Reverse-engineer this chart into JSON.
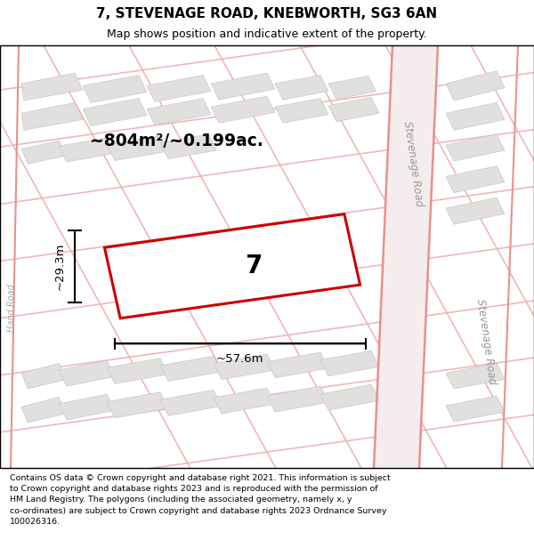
{
  "title_line1": "7, STEVENAGE ROAD, KNEBWORTH, SG3 6AN",
  "title_line2": "Map shows position and indicative extent of the property.",
  "footer_text": "Contains OS data © Crown copyright and database right 2021. This information is subject\nto Crown copyright and database rights 2023 and is reproduced with the permission of\nHM Land Registry. The polygons (including the associated geometry, namely x, y\nco-ordinates) are subject to Crown copyright and database rights 2023 Ordnance Survey\n100026316.",
  "area_text": "~804m²/~0.199ac.",
  "width_label": "~57.6m",
  "height_label": "~29.3m",
  "plot_number": "7",
  "map_bg": "#eeecec",
  "building_col": "#e2dfdf",
  "building_edge": "#c8c8c8",
  "pink_road": "#f0b8b8",
  "pink_road_dark": "#e89090",
  "plot_edge_color": "#cc0000",
  "street_label": "Stevenage Road",
  "street_label2": "Stevenage Road",
  "road_label_left": "Hand Road"
}
